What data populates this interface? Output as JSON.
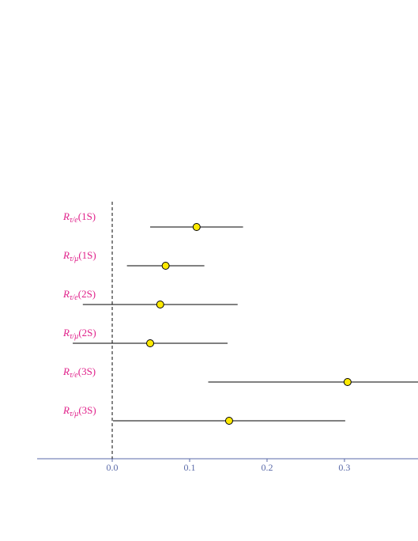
{
  "chart_data": {
    "type": "forest",
    "labels": [
      {
        "symbol": "R",
        "sub": "τ/e",
        "state": "(1S)"
      },
      {
        "symbol": "R",
        "sub": "τ/μ",
        "state": "(1S)"
      },
      {
        "symbol": "R",
        "sub": "τ/e",
        "state": "(2S)"
      },
      {
        "symbol": "R",
        "sub": "τ/μ",
        "state": "(2S)"
      },
      {
        "symbol": "R",
        "sub": "τ/e",
        "state": "(3S)"
      },
      {
        "symbol": "R",
        "sub": "τ/μ",
        "state": "(3S)"
      }
    ],
    "values": [
      0.109,
      0.069,
      0.062,
      0.049,
      0.304,
      0.151
    ],
    "errors": [
      0.06,
      0.05,
      0.1,
      0.1,
      0.18,
      0.15
    ],
    "marker_color": "#ffea00",
    "line_color": "#000000",
    "axis_color": "#5a6aa8",
    "reference_x": 0,
    "xlim": [
      -0.097,
      0.395
    ],
    "xticks": [
      {
        "value": 0,
        "label": "0.0"
      },
      0.1,
      0.2,
      0.3
    ]
  }
}
